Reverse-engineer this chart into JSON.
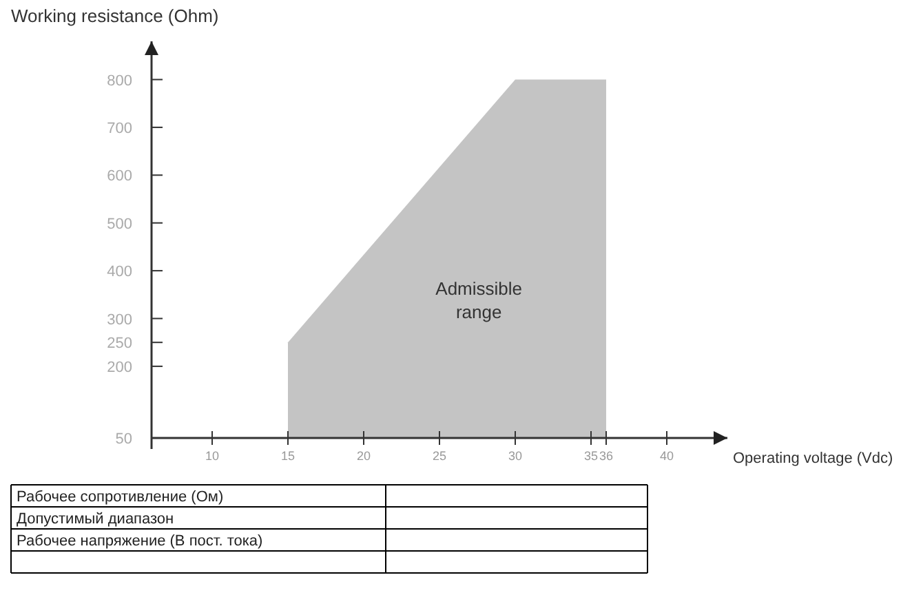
{
  "chart_data": {
    "type": "area",
    "xlabel": "Operating voltage (Vdc)",
    "ylabel": "Working resistance (Ohm)",
    "x": [
      15,
      30,
      36
    ],
    "series": [
      {
        "color": "#c4c4c4",
        "values": [
          250,
          800,
          800
        ]
      }
    ],
    "xlim": [
      6,
      44
    ],
    "xticks": [
      10,
      15,
      20,
      25,
      30,
      35,
      36,
      40
    ],
    "ylim": [
      50,
      880
    ],
    "yticks": [
      50,
      200,
      250,
      300,
      400,
      500,
      600,
      700,
      800
    ],
    "grid": false,
    "annotations": [
      "Admissible range",
      "Рабочее сопротивление (Ом)",
      "Допустимый диапазон",
      "Рабочее напряжение (В пост. тока)"
    ]
  }
}
